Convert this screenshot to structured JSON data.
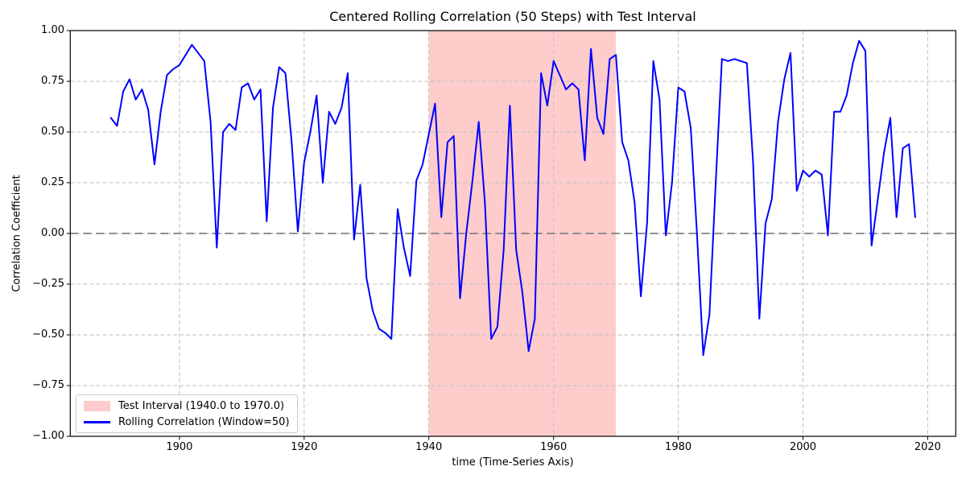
{
  "chart_data": {
    "type": "line",
    "title": "Centered Rolling Correlation (50 Steps) with Test Interval",
    "xlabel": "time (Time-Series Axis)",
    "ylabel": "Correlation Coefficient",
    "xlim": [
      1882.5,
      2024.5
    ],
    "ylim": [
      -1.0,
      1.0
    ],
    "xticks": [
      1900,
      1920,
      1940,
      1960,
      1980,
      2000,
      2020
    ],
    "xtick_labels": [
      "1900",
      "1920",
      "1940",
      "1960",
      "1980",
      "2000",
      "2020"
    ],
    "yticks": [
      1.0,
      0.75,
      0.5,
      0.25,
      0.0,
      -0.25,
      -0.5,
      -0.75,
      -1.0
    ],
    "ytick_labels": [
      "1.00",
      "0.75",
      "0.50",
      "0.25",
      "0.00",
      "−0.25",
      "−0.50",
      "−0.75",
      "−1.00"
    ],
    "grid": true,
    "grid_color": "#bdbdbd",
    "zero_line": {
      "y": 0.0,
      "color": "#808080",
      "style": "dashed"
    },
    "test_interval": {
      "start": 1940.0,
      "end": 1970.0,
      "color": "#ffcccc"
    },
    "series": [
      {
        "name": "Rolling Correlation (Window=50)",
        "color": "#0000ff",
        "x_start": 1889,
        "x_step": 1,
        "x_end": 2018,
        "values": [
          0.57,
          0.53,
          0.7,
          0.76,
          0.66,
          0.71,
          0.61,
          0.34,
          0.6,
          0.78,
          0.81,
          0.83,
          0.88,
          0.93,
          0.89,
          0.85,
          0.55,
          -0.07,
          0.5,
          0.54,
          0.51,
          0.72,
          0.74,
          0.66,
          0.71,
          0.06,
          0.62,
          0.82,
          0.79,
          0.45,
          0.01,
          0.35,
          0.5,
          0.68,
          0.25,
          0.6,
          0.54,
          0.62,
          0.79,
          -0.03,
          0.24,
          -0.22,
          -0.38,
          -0.47,
          -0.49,
          -0.52,
          0.12,
          -0.07,
          -0.21,
          0.26,
          0.34,
          0.49,
          0.64,
          0.08,
          0.45,
          0.48,
          -0.32,
          0.0,
          0.26,
          0.55,
          0.15,
          -0.52,
          -0.46,
          -0.08,
          0.63,
          -0.08,
          -0.29,
          -0.58,
          -0.42,
          0.79,
          0.63,
          0.85,
          0.78,
          0.71,
          0.74,
          0.71,
          0.36,
          0.91,
          0.57,
          0.49,
          0.86,
          0.88,
          0.45,
          0.36,
          0.15,
          -0.31,
          0.05,
          0.85,
          0.66,
          -0.01,
          0.25,
          0.72,
          0.7,
          0.52,
          0.0,
          -0.6,
          -0.4,
          0.25,
          0.86,
          0.85,
          0.86,
          0.85,
          0.84,
          0.35,
          -0.42,
          0.05,
          0.17,
          0.55,
          0.76,
          0.89,
          0.21,
          0.31,
          0.28,
          0.31,
          0.29,
          -0.01,
          0.6,
          0.6,
          0.68,
          0.84,
          0.95,
          0.9,
          -0.06,
          0.17,
          0.4,
          0.57,
          0.08,
          0.42,
          0.44,
          0.08
        ]
      }
    ],
    "legend": {
      "position": "lower left",
      "entries": [
        {
          "swatch": "patch",
          "color": "#ffcccc",
          "label": "Test Interval (1940.0 to 1970.0)"
        },
        {
          "swatch": "line",
          "color": "#0000ff",
          "label": "Rolling Correlation (Window=50)"
        }
      ]
    }
  }
}
